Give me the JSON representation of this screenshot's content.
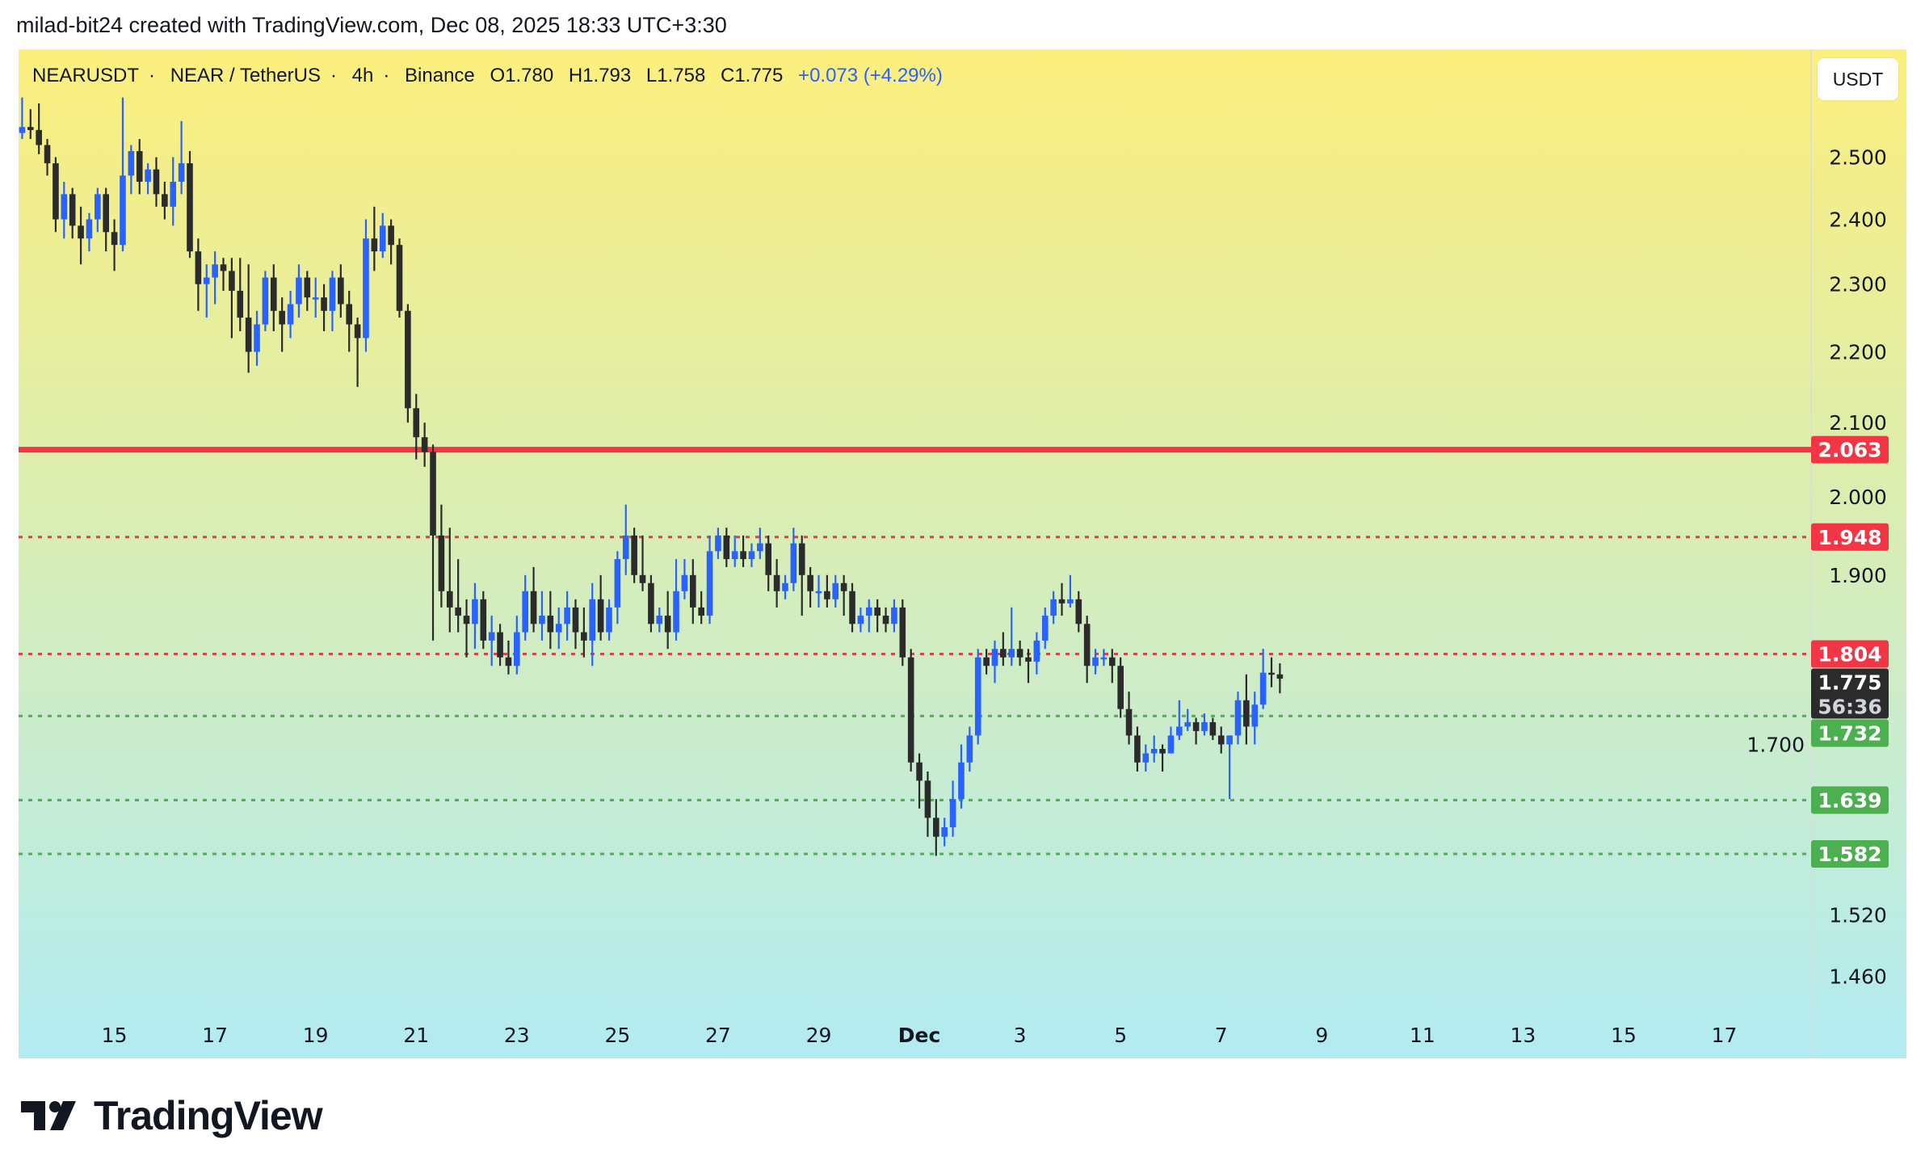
{
  "credit": "milad-bit24 created with TradingView.com, Dec 08, 2025 18:33 UTC+3:30",
  "legend": {
    "symbol": "NEARUSDT",
    "name": "NEAR / TetherUS",
    "interval": "4h",
    "exchange": "Binance",
    "open": "O1.780",
    "high": "H1.793",
    "low": "L1.758",
    "close": "C1.775",
    "change": "+0.073 (+4.29%)",
    "separator": "·"
  },
  "currency_button": "USDT",
  "brand": "TradingView",
  "colors": {
    "up": "#2962ff",
    "down": "#2b2b2b",
    "resistance": "#f23645",
    "support": "#4caf50",
    "bg_top": "#fcef7d",
    "bg_bottom": "#b2ebf2"
  },
  "chart_data": {
    "type": "candlestick",
    "scale": "log",
    "ylim": [
      1.4,
      2.62
    ],
    "price_axis_ticks": [
      "2.500",
      "2.400",
      "2.300",
      "2.200",
      "2.100",
      "2.000",
      "1.900",
      "1.700",
      "1.520",
      "1.460"
    ],
    "x_ticks": [
      "15",
      "17",
      "19",
      "21",
      "23",
      "25",
      "27",
      "29",
      "Dec",
      "3",
      "5",
      "7",
      "9",
      "11",
      "13",
      "15",
      "17"
    ],
    "levels": [
      {
        "price": 2.063,
        "label": "2.063",
        "kind": "resistance",
        "style": "solid"
      },
      {
        "price": 1.948,
        "label": "1.948",
        "kind": "resistance",
        "style": "dotted"
      },
      {
        "price": 1.804,
        "label": "1.804",
        "kind": "resistance",
        "style": "dotted"
      },
      {
        "price": 1.732,
        "label": "1.732",
        "kind": "support",
        "style": "dotted"
      },
      {
        "price": 1.639,
        "label": "1.639",
        "kind": "support",
        "style": "dotted"
      },
      {
        "price": 1.582,
        "label": "1.582",
        "kind": "support",
        "style": "dotted"
      }
    ],
    "last_price": {
      "price": 1.775,
      "label": "1.775",
      "countdown": "56:36"
    },
    "candles": [
      [
        2.54,
        2.6,
        2.53,
        2.55
      ],
      [
        2.55,
        2.58,
        2.53,
        2.545
      ],
      [
        2.545,
        2.59,
        2.505,
        2.52
      ],
      [
        2.52,
        2.53,
        2.47,
        2.49
      ],
      [
        2.49,
        2.5,
        2.38,
        2.4
      ],
      [
        2.4,
        2.46,
        2.37,
        2.44
      ],
      [
        2.44,
        2.45,
        2.37,
        2.39
      ],
      [
        2.39,
        2.42,
        2.33,
        2.37
      ],
      [
        2.37,
        2.41,
        2.35,
        2.4
      ],
      [
        2.4,
        2.45,
        2.38,
        2.44
      ],
      [
        2.44,
        2.45,
        2.35,
        2.38
      ],
      [
        2.38,
        2.4,
        2.32,
        2.36
      ],
      [
        2.36,
        2.6,
        2.35,
        2.47
      ],
      [
        2.47,
        2.52,
        2.44,
        2.51
      ],
      [
        2.51,
        2.53,
        2.44,
        2.46
      ],
      [
        2.46,
        2.49,
        2.44,
        2.48
      ],
      [
        2.48,
        2.5,
        2.42,
        2.44
      ],
      [
        2.44,
        2.46,
        2.4,
        2.42
      ],
      [
        2.42,
        2.5,
        2.39,
        2.46
      ],
      [
        2.46,
        2.56,
        2.44,
        2.49
      ],
      [
        2.49,
        2.51,
        2.34,
        2.35
      ],
      [
        2.35,
        2.37,
        2.26,
        2.3
      ],
      [
        2.3,
        2.33,
        2.25,
        2.31
      ],
      [
        2.31,
        2.35,
        2.27,
        2.33
      ],
      [
        2.33,
        2.34,
        2.29,
        2.32
      ],
      [
        2.32,
        2.34,
        2.22,
        2.29
      ],
      [
        2.29,
        2.34,
        2.23,
        2.25
      ],
      [
        2.25,
        2.33,
        2.17,
        2.2
      ],
      [
        2.2,
        2.26,
        2.18,
        2.24
      ],
      [
        2.24,
        2.32,
        2.23,
        2.31
      ],
      [
        2.31,
        2.33,
        2.23,
        2.26
      ],
      [
        2.26,
        2.28,
        2.2,
        2.24
      ],
      [
        2.24,
        2.29,
        2.22,
        2.27
      ],
      [
        2.27,
        2.33,
        2.25,
        2.31
      ],
      [
        2.31,
        2.32,
        2.26,
        2.28
      ],
      [
        2.28,
        2.31,
        2.25,
        2.28
      ],
      [
        2.28,
        2.3,
        2.23,
        2.26
      ],
      [
        2.26,
        2.32,
        2.23,
        2.31
      ],
      [
        2.31,
        2.33,
        2.25,
        2.27
      ],
      [
        2.27,
        2.29,
        2.2,
        2.24
      ],
      [
        2.24,
        2.25,
        2.15,
        2.22
      ],
      [
        2.22,
        2.4,
        2.2,
        2.37
      ],
      [
        2.37,
        2.42,
        2.32,
        2.35
      ],
      [
        2.35,
        2.41,
        2.34,
        2.39
      ],
      [
        2.39,
        2.4,
        2.33,
        2.36
      ],
      [
        2.36,
        2.37,
        2.25,
        2.26
      ],
      [
        2.26,
        2.27,
        2.1,
        2.12
      ],
      [
        2.12,
        2.14,
        2.05,
        2.08
      ],
      [
        2.08,
        2.1,
        2.04,
        2.06
      ],
      [
        2.06,
        2.07,
        1.82,
        1.95
      ],
      [
        1.95,
        1.99,
        1.86,
        1.88
      ],
      [
        1.88,
        1.96,
        1.83,
        1.86
      ],
      [
        1.86,
        1.92,
        1.83,
        1.85
      ],
      [
        1.85,
        1.87,
        1.8,
        1.84
      ],
      [
        1.84,
        1.89,
        1.81,
        1.87
      ],
      [
        1.87,
        1.88,
        1.81,
        1.82
      ],
      [
        1.82,
        1.85,
        1.79,
        1.83
      ],
      [
        1.83,
        1.84,
        1.79,
        1.8
      ],
      [
        1.8,
        1.82,
        1.78,
        1.79
      ],
      [
        1.79,
        1.85,
        1.78,
        1.83
      ],
      [
        1.83,
        1.9,
        1.82,
        1.88
      ],
      [
        1.88,
        1.91,
        1.83,
        1.84
      ],
      [
        1.84,
        1.88,
        1.82,
        1.85
      ],
      [
        1.85,
        1.88,
        1.81,
        1.83
      ],
      [
        1.83,
        1.86,
        1.81,
        1.84
      ],
      [
        1.84,
        1.88,
        1.82,
        1.86
      ],
      [
        1.86,
        1.87,
        1.81,
        1.83
      ],
      [
        1.83,
        1.86,
        1.8,
        1.82
      ],
      [
        1.82,
        1.89,
        1.79,
        1.87
      ],
      [
        1.87,
        1.9,
        1.82,
        1.83
      ],
      [
        1.83,
        1.87,
        1.82,
        1.86
      ],
      [
        1.86,
        1.93,
        1.84,
        1.92
      ],
      [
        1.92,
        1.99,
        1.9,
        1.95
      ],
      [
        1.95,
        1.96,
        1.89,
        1.9
      ],
      [
        1.9,
        1.95,
        1.88,
        1.89
      ],
      [
        1.89,
        1.9,
        1.83,
        1.84
      ],
      [
        1.84,
        1.86,
        1.83,
        1.85
      ],
      [
        1.85,
        1.88,
        1.81,
        1.83
      ],
      [
        1.83,
        1.92,
        1.82,
        1.88
      ],
      [
        1.88,
        1.92,
        1.87,
        1.9
      ],
      [
        1.9,
        1.92,
        1.84,
        1.86
      ],
      [
        1.86,
        1.88,
        1.84,
        1.85
      ],
      [
        1.85,
        1.95,
        1.84,
        1.93
      ],
      [
        1.93,
        1.96,
        1.92,
        1.95
      ],
      [
        1.95,
        1.96,
        1.91,
        1.92
      ],
      [
        1.92,
        1.95,
        1.91,
        1.93
      ],
      [
        1.93,
        1.95,
        1.91,
        1.92
      ],
      [
        1.92,
        1.94,
        1.91,
        1.93
      ],
      [
        1.93,
        1.96,
        1.92,
        1.94
      ],
      [
        1.94,
        1.95,
        1.88,
        1.9
      ],
      [
        1.9,
        1.92,
        1.86,
        1.88
      ],
      [
        1.88,
        1.9,
        1.87,
        1.89
      ],
      [
        1.89,
        1.96,
        1.88,
        1.94
      ],
      [
        1.94,
        1.95,
        1.85,
        1.9
      ],
      [
        1.9,
        1.91,
        1.86,
        1.88
      ],
      [
        1.88,
        1.9,
        1.86,
        1.88
      ],
      [
        1.88,
        1.9,
        1.86,
        1.87
      ],
      [
        1.87,
        1.9,
        1.86,
        1.89
      ],
      [
        1.89,
        1.9,
        1.85,
        1.88
      ],
      [
        1.88,
        1.89,
        1.83,
        1.84
      ],
      [
        1.84,
        1.86,
        1.83,
        1.85
      ],
      [
        1.85,
        1.87,
        1.83,
        1.86
      ],
      [
        1.86,
        1.87,
        1.83,
        1.85
      ],
      [
        1.85,
        1.86,
        1.83,
        1.84
      ],
      [
        1.84,
        1.87,
        1.83,
        1.86
      ],
      [
        1.86,
        1.87,
        1.79,
        1.8
      ],
      [
        1.8,
        1.81,
        1.67,
        1.68
      ],
      [
        1.68,
        1.69,
        1.63,
        1.66
      ],
      [
        1.66,
        1.67,
        1.6,
        1.62
      ],
      [
        1.62,
        1.64,
        1.58,
        1.6
      ],
      [
        1.6,
        1.62,
        1.59,
        1.61
      ],
      [
        1.61,
        1.66,
        1.6,
        1.64
      ],
      [
        1.64,
        1.7,
        1.63,
        1.68
      ],
      [
        1.68,
        1.72,
        1.67,
        1.71
      ],
      [
        1.71,
        1.81,
        1.7,
        1.8
      ],
      [
        1.8,
        1.81,
        1.78,
        1.79
      ],
      [
        1.79,
        1.82,
        1.77,
        1.81
      ],
      [
        1.81,
        1.83,
        1.79,
        1.8
      ],
      [
        1.8,
        1.86,
        1.79,
        1.81
      ],
      [
        1.81,
        1.82,
        1.79,
        1.8
      ],
      [
        1.8,
        1.81,
        1.77,
        1.795
      ],
      [
        1.795,
        1.83,
        1.78,
        1.82
      ],
      [
        1.82,
        1.86,
        1.81,
        1.85
      ],
      [
        1.85,
        1.88,
        1.84,
        1.87
      ],
      [
        1.87,
        1.89,
        1.85,
        1.865
      ],
      [
        1.865,
        1.9,
        1.86,
        1.87
      ],
      [
        1.87,
        1.88,
        1.83,
        1.84
      ],
      [
        1.84,
        1.85,
        1.77,
        1.79
      ],
      [
        1.79,
        1.81,
        1.78,
        1.8
      ],
      [
        1.8,
        1.81,
        1.79,
        1.8
      ],
      [
        1.8,
        1.81,
        1.77,
        1.79
      ],
      [
        1.79,
        1.8,
        1.73,
        1.74
      ],
      [
        1.74,
        1.76,
        1.7,
        1.71
      ],
      [
        1.71,
        1.72,
        1.67,
        1.68
      ],
      [
        1.68,
        1.7,
        1.67,
        1.69
      ],
      [
        1.69,
        1.71,
        1.68,
        1.695
      ],
      [
        1.695,
        1.7,
        1.67,
        1.69
      ],
      [
        1.69,
        1.72,
        1.69,
        1.71
      ],
      [
        1.71,
        1.75,
        1.705,
        1.72
      ],
      [
        1.72,
        1.74,
        1.715,
        1.725
      ],
      [
        1.725,
        1.73,
        1.7,
        1.715
      ],
      [
        1.715,
        1.735,
        1.71,
        1.725
      ],
      [
        1.725,
        1.73,
        1.705,
        1.71
      ],
      [
        1.71,
        1.72,
        1.69,
        1.7
      ],
      [
        1.7,
        1.71,
        1.64,
        1.71
      ],
      [
        1.71,
        1.76,
        1.7,
        1.75
      ],
      [
        1.75,
        1.78,
        1.7,
        1.72
      ],
      [
        1.72,
        1.76,
        1.7,
        1.745
      ],
      [
        1.745,
        1.81,
        1.74,
        1.782
      ],
      [
        1.782,
        1.8,
        1.765,
        1.78
      ],
      [
        1.78,
        1.793,
        1.758,
        1.775
      ]
    ]
  }
}
